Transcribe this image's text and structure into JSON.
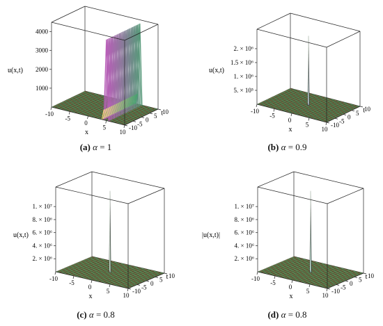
{
  "panels": [
    {
      "id": "a",
      "caption": {
        "label": "(a)",
        "alpha_symbol": "α",
        "eq": "= 1"
      },
      "zlabel": "u(x,t)",
      "xlabel": "x",
      "tlabel": "t",
      "x_ticks": [
        "-10",
        "-5",
        "0",
        "5",
        "10"
      ],
      "t_ticks": [
        "-10",
        "-5",
        "0",
        "5",
        "10"
      ],
      "z_ticks": [
        "1000",
        "2000",
        "3000",
        "4000"
      ]
    },
    {
      "id": "b",
      "caption": {
        "label": "(b)",
        "alpha_symbol": "α",
        "eq": "= 0.9"
      },
      "zlabel": "u(x,t)",
      "xlabel": "x",
      "tlabel": "t",
      "x_ticks": [
        "-10",
        "-5",
        "0",
        "5",
        "10"
      ],
      "t_ticks": [
        "-10",
        "-5",
        "0",
        "5",
        "10"
      ],
      "z_ticks": [
        "5. × 10⁵",
        "1. × 10⁶",
        "1.5 × 10⁶",
        "2. × 10⁶"
      ]
    },
    {
      "id": "c",
      "caption": {
        "label": "(c)",
        "alpha_symbol": "α",
        "eq": "= 0.8"
      },
      "zlabel": "u(x,t)",
      "xlabel": "x",
      "tlabel": "t",
      "x_ticks": [
        "-10",
        "-5",
        "0",
        "5",
        "10"
      ],
      "t_ticks": [
        "-10",
        "-5",
        "0",
        "5",
        "10"
      ],
      "z_ticks": [
        "2. × 10⁶",
        "4. × 10⁶",
        "6. × 10⁶",
        "8. × 10⁶",
        "1. × 10⁷"
      ]
    },
    {
      "id": "d",
      "caption": {
        "label": "(d)",
        "alpha_symbol": "α",
        "eq": "= 0.8"
      },
      "zlabel": "|u(x,t)|",
      "xlabel": "x",
      "tlabel": "t",
      "x_ticks": [
        "-10",
        "-5",
        "0",
        "5",
        "10"
      ],
      "t_ticks": [
        "-10",
        "-5",
        "0",
        "5",
        "10"
      ],
      "z_ticks": [
        "2. × 10⁶",
        "4. × 10⁶",
        "6. × 10⁶",
        "8. × 10⁶",
        "1. × 10⁷"
      ]
    }
  ],
  "chart_data": [
    {
      "type": "surface",
      "x_range": [
        -10,
        10
      ],
      "t_range": [
        -10,
        10
      ],
      "z_ticks": [
        1000,
        2000,
        3000,
        4000
      ],
      "shape": "wall",
      "peak_x": 5,
      "peak_z": 4300,
      "colors": {
        "high": "#b85fb8",
        "low": "#3fa86a",
        "floor": "#7a6a40"
      }
    },
    {
      "type": "surface",
      "x_range": [
        -10,
        10
      ],
      "t_range": [
        -10,
        10
      ],
      "z_ticks": [
        500000,
        1000000,
        1500000,
        2000000
      ],
      "shape": "spike",
      "peak_x": 0,
      "peak_z": 2500000,
      "colors": {
        "high": "#8a9aa8",
        "low": "#3fa86a",
        "floor": "#7a6a40"
      }
    },
    {
      "type": "surface",
      "x_range": [
        -10,
        10
      ],
      "t_range": [
        -10,
        10
      ],
      "z_ticks": [
        2000000,
        4000000,
        6000000,
        8000000,
        10000000
      ],
      "shape": "spike",
      "peak_x": 0,
      "peak_z": 12500000,
      "colors": {
        "high": "#9ab4a0",
        "low": "#4fb870",
        "floor": "#7a6a40"
      }
    },
    {
      "type": "surface",
      "x_range": [
        -10,
        10
      ],
      "t_range": [
        -10,
        10
      ],
      "z_ticks": [
        2000000,
        4000000,
        6000000,
        8000000,
        10000000
      ],
      "shape": "spike",
      "peak_x": 0,
      "peak_z": 12500000,
      "colors": {
        "high": "#8ab0a8",
        "low": "#4fb870",
        "floor": "#7a6a40"
      }
    }
  ]
}
